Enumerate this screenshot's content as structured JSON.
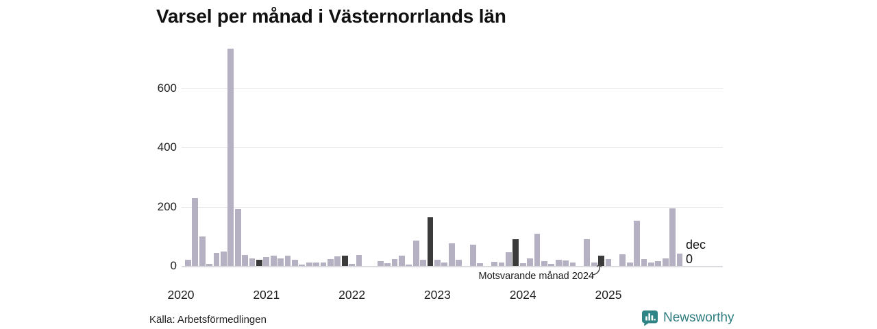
{
  "header": {
    "title": "Varsel per månad i Västernorrlands län"
  },
  "chart_data": {
    "type": "bar",
    "title": "Varsel per månad i Västernorrlands län",
    "xlabel": "",
    "ylabel": "",
    "yticks": [
      0,
      200,
      400,
      600
    ],
    "ylim": [
      0,
      748
    ],
    "grid": true,
    "years": [
      "2020",
      "2021",
      "2022",
      "2023",
      "2024",
      "2025"
    ],
    "month_values": {
      "2020": [
        0,
        21,
        229,
        101,
        8,
        44,
        50,
        734,
        192,
        38,
        27,
        21
      ],
      "2021": [
        31,
        35,
        25,
        35,
        21,
        6,
        13,
        13,
        13,
        23,
        32,
        35
      ],
      "2022": [
        8,
        38,
        0,
        0,
        18,
        10,
        23,
        35,
        5,
        86,
        22,
        164
      ],
      "2023": [
        22,
        13,
        78,
        22,
        0,
        73,
        11,
        0,
        15,
        12,
        46,
        90
      ],
      "2024": [
        9,
        25,
        110,
        17,
        7,
        22,
        19,
        13,
        0,
        90,
        12,
        36
      ],
      "2025": [
        24,
        0,
        40,
        12,
        153,
        23,
        12,
        16,
        27,
        196,
        42,
        0
      ]
    },
    "highlighted_months": [
      "2020-12",
      "2021-12",
      "2022-12",
      "2023-12",
      "2024-12"
    ],
    "end_label": {
      "month": "dec",
      "value": "0"
    },
    "annotation": {
      "text": "Motsvarande månad 2024",
      "target_month": "2024-12"
    },
    "colors": {
      "bar": "#b5b1c2",
      "highlight": "#3b3b3b",
      "grid": "#e7e7eb",
      "accent_teal": "#2e7c7f"
    }
  },
  "footer": {
    "source": "Källa: Arbetsförmedlingen",
    "brand": "Newsworthy",
    "brand_icon": "bar-chart-speech-bubble"
  }
}
